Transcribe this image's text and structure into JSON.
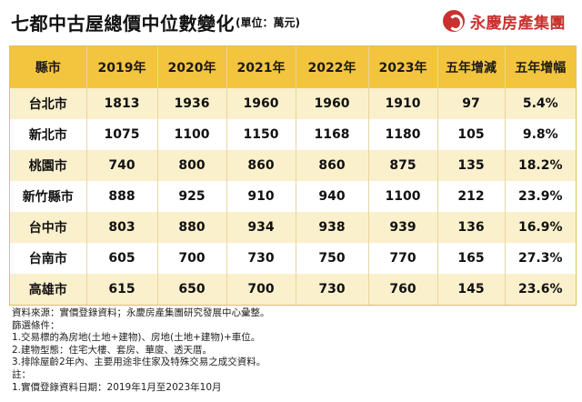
{
  "header": {
    "title": "七都中古屋總價中位數變化",
    "unit": "(單位：萬元)",
    "brand": "永慶房產集團"
  },
  "table": {
    "columns": [
      "縣市",
      "2019年",
      "2020年",
      "2021年",
      "2022年",
      "2023年",
      "五年增減",
      "五年增幅"
    ],
    "rows": [
      [
        "台北市",
        "1813",
        "1936",
        "1960",
        "1960",
        "1910",
        "97",
        "5.4%"
      ],
      [
        "新北市",
        "1075",
        "1100",
        "1150",
        "1168",
        "1180",
        "105",
        "9.8%"
      ],
      [
        "桃園市",
        "740",
        "800",
        "860",
        "860",
        "875",
        "135",
        "18.2%"
      ],
      [
        "新竹縣市",
        "888",
        "925",
        "910",
        "940",
        "1100",
        "212",
        "23.9%"
      ],
      [
        "台中市",
        "803",
        "880",
        "934",
        "938",
        "939",
        "136",
        "16.9%"
      ],
      [
        "台南市",
        "605",
        "700",
        "730",
        "750",
        "770",
        "165",
        "27.3%"
      ],
      [
        "高雄市",
        "615",
        "650",
        "700",
        "730",
        "760",
        "145",
        "23.6%"
      ]
    ]
  },
  "notes": [
    "資料來源：實價登錄資料；永慶房產集團研究發展中心彙整。",
    "篩選條件：",
    "1.交易標的為房地(土地+建物)、房地(土地+建物)+車位。",
    "2.建物型態：住宅大樓、套房、華廈、透天厝。",
    "3.排除屋齡2年內、主要用途非住家及特殊交易之成交資料。",
    "註：",
    "1.實價登錄資料日期：2019年1月至2023年10月"
  ]
}
